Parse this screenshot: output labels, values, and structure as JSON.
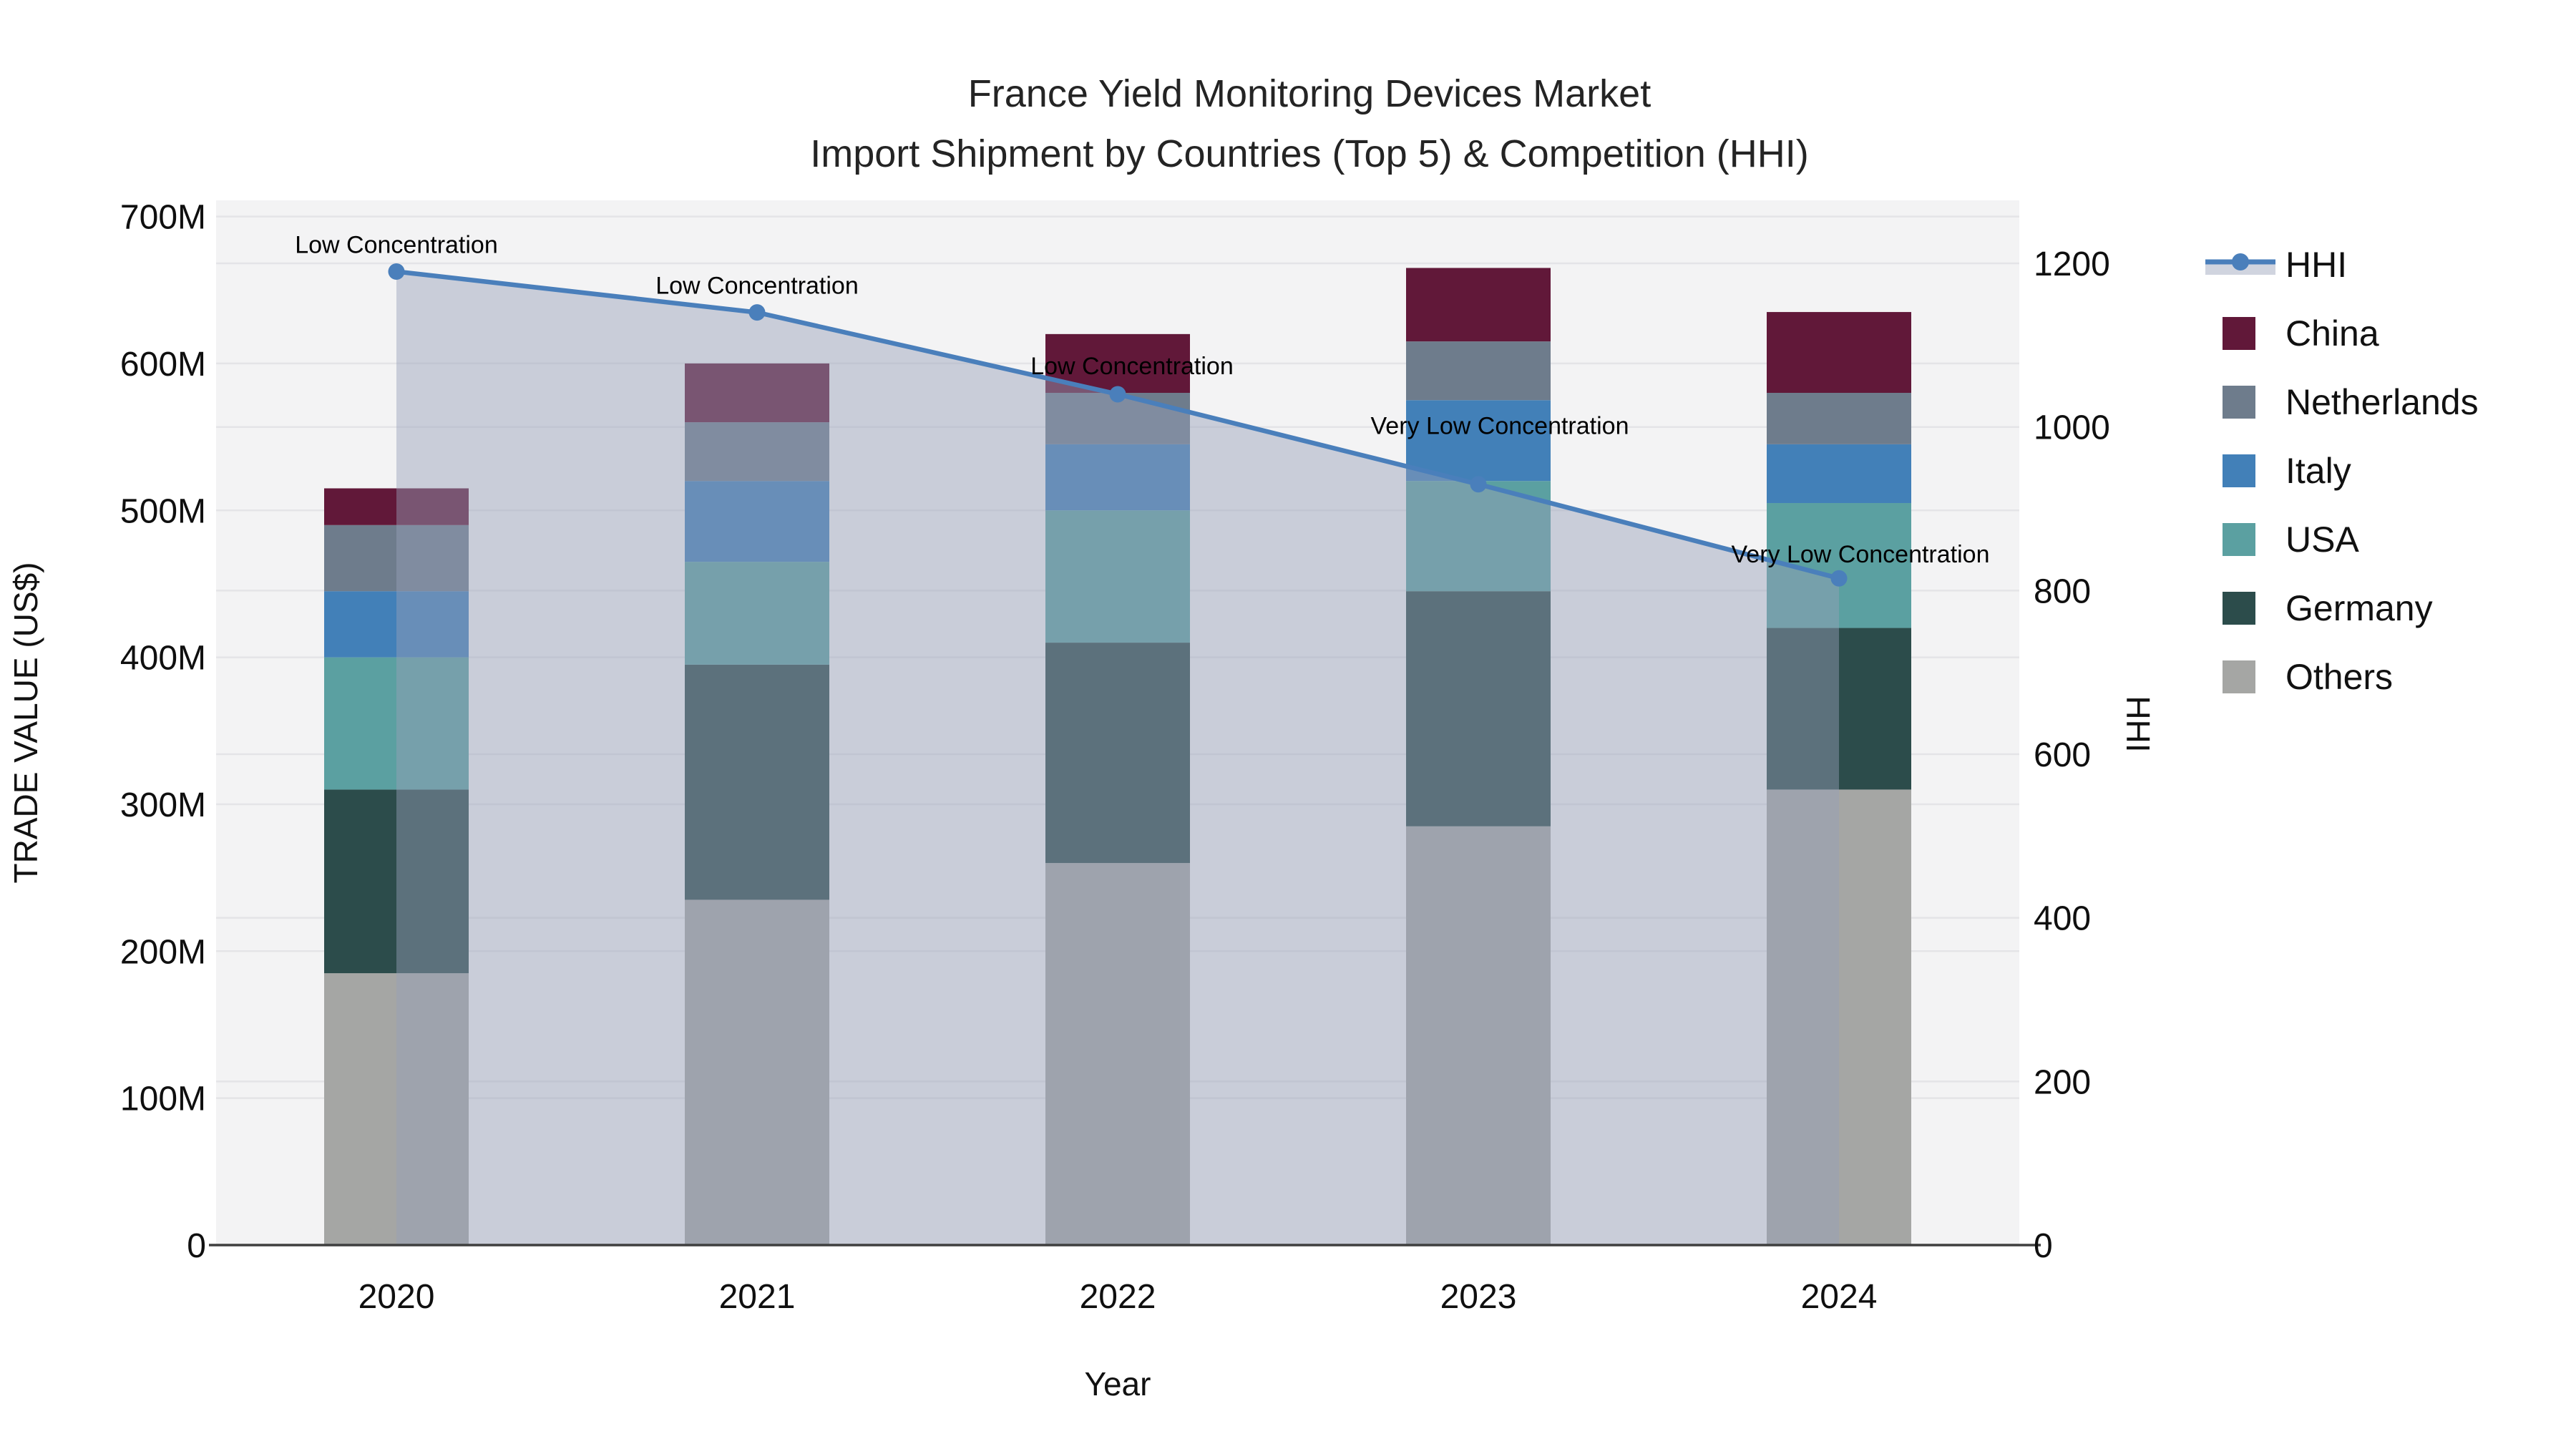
{
  "title": {
    "line1": "France Yield Monitoring Devices Market",
    "line2": "Import Shipment by Countries (Top 5) & Competition (HHI)"
  },
  "chart_data": {
    "type": "bar+line",
    "title": "France Yield Monitoring Devices Market — Import Shipment by Countries (Top 5) & Competition (HHI)",
    "categories": [
      "2020",
      "2021",
      "2022",
      "2023",
      "2024"
    ],
    "stack_unit": "M US$",
    "series": [
      {
        "name": "Others",
        "color": "#a5a6a4",
        "values": [
          185,
          235,
          260,
          285,
          310
        ]
      },
      {
        "name": "Germany",
        "color": "#2c4c4b",
        "values": [
          125,
          160,
          150,
          160,
          110
        ]
      },
      {
        "name": "USA",
        "color": "#5ba0a1",
        "values": [
          90,
          70,
          90,
          75,
          85
        ]
      },
      {
        "name": "Italy",
        "color": "#4280b8",
        "values": [
          45,
          55,
          45,
          55,
          40
        ]
      },
      {
        "name": "Netherlands",
        "color": "#6e7c8c",
        "values": [
          45,
          40,
          35,
          40,
          35
        ]
      },
      {
        "name": "China",
        "color": "#611839",
        "values": [
          25,
          40,
          40,
          50,
          55
        ]
      }
    ],
    "line_series": {
      "name": "HHI",
      "axis": "right",
      "color": "#4a7fbb",
      "area_fill": "rgba(150,160,185,0.45)",
      "values": [
        1190,
        1140,
        1040,
        930,
        815
      ]
    },
    "annotations": [
      {
        "category": "2020",
        "text": "Low Concentration"
      },
      {
        "category": "2021",
        "text": "Low Concentration"
      },
      {
        "category": "2022",
        "text": "Low Concentration"
      },
      {
        "category": "2023",
        "text": "Very Low Concentration"
      },
      {
        "category": "2024",
        "text": "Very Low Concentration"
      }
    ],
    "axes": {
      "x": {
        "title": "Year"
      },
      "y_left": {
        "title": "TRADE VALUE (US$)",
        "tick_values": [
          0,
          100,
          200,
          300,
          400,
          500,
          600,
          700
        ],
        "tick_labels": [
          "0",
          "100M",
          "200M",
          "300M",
          "400M",
          "500M",
          "600M",
          "700M"
        ],
        "range_max": 711
      },
      "y_right": {
        "title": "HHI",
        "tick_values": [
          0,
          200,
          400,
          600,
          800,
          1000,
          1200
        ],
        "tick_labels": [
          "0",
          "200",
          "400",
          "600",
          "800",
          "1000",
          "1200"
        ],
        "range_max": 1277
      }
    },
    "layout": {
      "plot_bg": "#f3f3f4",
      "grid_color": "#e4e4e7",
      "axis_line_color": "#3f3f3f",
      "legend_position": "right",
      "grid": true
    }
  },
  "legend": {
    "items": [
      {
        "label": "HHI",
        "type": "line",
        "color": "#4a7fbb"
      },
      {
        "label": "China",
        "type": "swatch",
        "color": "#611839"
      },
      {
        "label": "Netherlands",
        "type": "swatch",
        "color": "#6e7c8c"
      },
      {
        "label": "Italy",
        "type": "swatch",
        "color": "#4280b8"
      },
      {
        "label": "USA",
        "type": "swatch",
        "color": "#5ba0a1"
      },
      {
        "label": "Germany",
        "type": "swatch",
        "color": "#2c4c4b"
      },
      {
        "label": "Others",
        "type": "swatch",
        "color": "#a5a6a4"
      }
    ]
  }
}
